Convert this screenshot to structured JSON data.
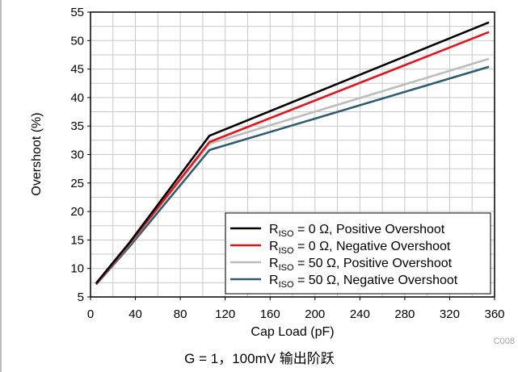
{
  "chart_data": {
    "type": "line",
    "title": "",
    "xlabel": "Cap Load (pF)",
    "ylabel": "Overshoot (%)",
    "xlim": [
      0,
      360
    ],
    "ylim": [
      5,
      55
    ],
    "xticks": [
      0,
      40,
      80,
      120,
      160,
      200,
      240,
      280,
      320,
      360
    ],
    "yticks": [
      5,
      10,
      15,
      20,
      25,
      30,
      35,
      40,
      45,
      50,
      55
    ],
    "grid": true,
    "legend_position": "bottom-right",
    "x": [
      5,
      35,
      106,
      355
    ],
    "series": [
      {
        "name": "RISO = 0 Ω, Positive Overshoot",
        "name_subscript": "ISO",
        "color": "#000000",
        "values": [
          7.4,
          14.6,
          33.3,
          53.2
        ]
      },
      {
        "name": "RISO = 0 Ω, Negative Overshoot",
        "name_subscript": "ISO",
        "color": "#e5131b",
        "values": [
          7.3,
          14.4,
          32.2,
          51.5
        ]
      },
      {
        "name": "RISO = 50 Ω, Positive Overshoot",
        "name_subscript": "ISO",
        "color": "#bcbcbc",
        "values": [
          7.3,
          14.3,
          31.9,
          46.8
        ]
      },
      {
        "name": "RISO = 50 Ω, Negative Overshoot",
        "name_subscript": "ISO",
        "color": "#2e5d71",
        "values": [
          7.2,
          13.9,
          30.8,
          45.4
        ]
      }
    ]
  },
  "caption": "G = 1，100mV 输出阶跃",
  "figure_id": "C008"
}
